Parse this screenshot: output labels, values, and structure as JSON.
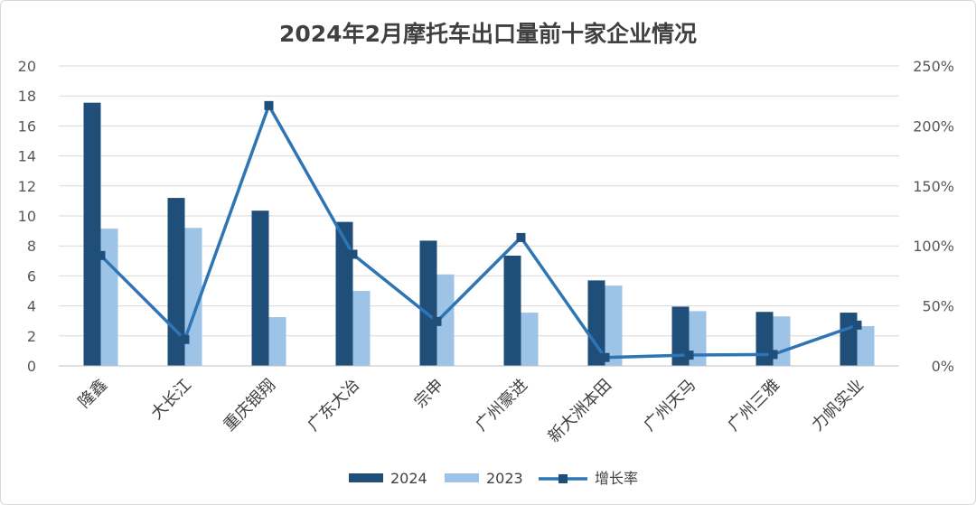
{
  "chart_data": {
    "type": "bar",
    "title": "2024年2月摩托车出口量前十家企业情况",
    "categories": [
      "隆鑫",
      "大长江",
      "重庆银翔",
      "广东大冶",
      "宗申",
      "广州豪进",
      "新大洲本田",
      "广州天马",
      "广州三雅",
      "力帆实业"
    ],
    "series": [
      {
        "name": "2024",
        "type": "bar",
        "axis": "left",
        "color": "#1f4e79",
        "values": [
          17.55,
          11.2,
          10.35,
          9.6,
          8.35,
          7.35,
          5.7,
          3.95,
          3.6,
          3.55
        ]
      },
      {
        "name": "2023",
        "type": "bar",
        "axis": "left",
        "color": "#9dc3e6",
        "values": [
          9.15,
          9.2,
          3.25,
          5.0,
          6.1,
          3.55,
          5.35,
          3.65,
          3.3,
          2.65
        ]
      },
      {
        "name": "增长率",
        "type": "line",
        "axis": "right",
        "color": "#2e75b6",
        "values": [
          0.92,
          0.22,
          2.17,
          0.93,
          0.37,
          1.07,
          0.07,
          0.09,
          0.095,
          0.34
        ]
      }
    ],
    "y_left": {
      "min": 0,
      "max": 20,
      "ticks": [
        "0",
        "2",
        "4",
        "6",
        "8",
        "10",
        "12",
        "14",
        "16",
        "18",
        "20"
      ]
    },
    "y_right": {
      "min": 0,
      "max": 2.5,
      "ticks": [
        "0%",
        "50%",
        "100%",
        "150%",
        "200%",
        "250%"
      ]
    },
    "grid": true,
    "legend_position": "bottom"
  }
}
